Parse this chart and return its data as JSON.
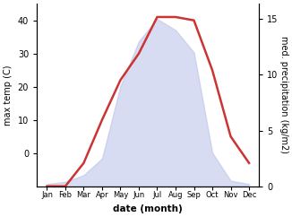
{
  "months": [
    "Jan",
    "Feb",
    "Mar",
    "Apr",
    "May",
    "Jun",
    "Jul",
    "Aug",
    "Sep",
    "Oct",
    "Nov",
    "Dec"
  ],
  "temp": [
    -10,
    -10,
    -3,
    10,
    22,
    30,
    41,
    41,
    40,
    25,
    5,
    -3
  ],
  "precip": [
    0.2,
    0.4,
    1.0,
    2.5,
    9,
    13,
    15,
    14,
    12,
    3,
    0.5,
    0.2
  ],
  "temp_color": "#cc3333",
  "precip_fill_color": "#b8c0e8",
  "ylim_temp": [
    -10,
    45
  ],
  "ylim_precip": [
    0,
    16.363636
  ],
  "ylabel_left": "max temp (C)",
  "ylabel_right": "med. precipitation (kg/m2)",
  "xlabel": "date (month)",
  "bg_color": "#ffffff",
  "yticks_left": [
    0,
    10,
    20,
    30,
    40
  ],
  "yticks_right": [
    0,
    5,
    10,
    15
  ],
  "temp_lw": 1.8,
  "precip_alpha": 0.55
}
